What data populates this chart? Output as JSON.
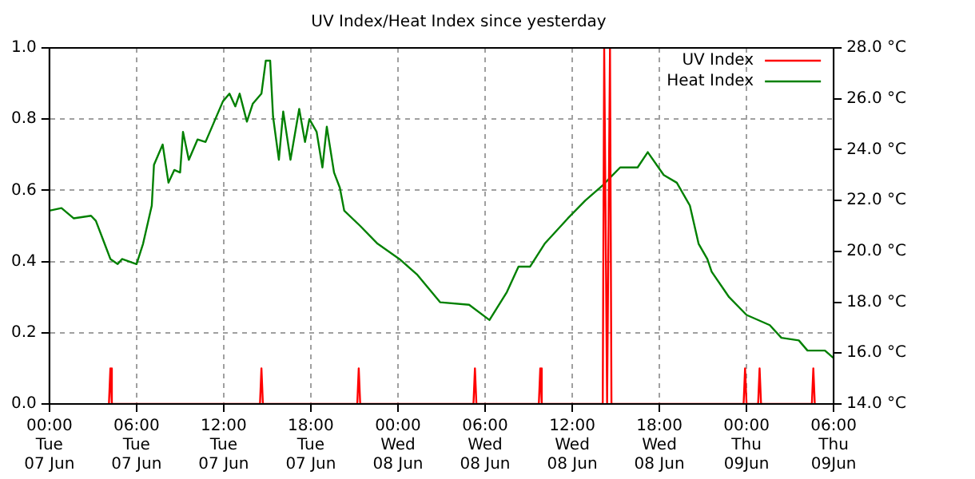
{
  "chart_data": {
    "type": "line",
    "title": "UV Index/Heat Index since yesterday",
    "xlim": [
      "--06-07T00:00",
      "--06-09T06:00"
    ],
    "xticks": [
      {
        "value": "--06-07T00:00",
        "label": "00:00\nTue\n07 Jun"
      },
      {
        "value": "--06-07T06:00",
        "label": "06:00\nTue\n07 Jun"
      },
      {
        "value": "--06-07T12:00",
        "label": "12:00\nTue\n07 Jun"
      },
      {
        "value": "--06-07T18:00",
        "label": "18:00\nTue\n07 Jun"
      },
      {
        "value": "--06-08T00:00",
        "label": "00:00\nWed\n08 Jun"
      },
      {
        "value": "--06-08T06:00",
        "label": "06:00\nWed\n08 Jun"
      },
      {
        "value": "--06-08T12:00",
        "label": "12:00\nWed\n08 Jun"
      },
      {
        "value": "--06-08T18:00",
        "label": "18:00\nWed\n08 Jun"
      },
      {
        "value": "--06-09T00:00",
        "label": "00:00\nThu\n09Jun"
      },
      {
        "value": "--06-09T06:00",
        "label": "06:00\nThu\n09Jun"
      }
    ],
    "ylim": [
      0,
      1
    ],
    "yticks": [
      {
        "value": 0,
        "label": "0.0"
      },
      {
        "value": 0.2,
        "label": "0.2"
      },
      {
        "value": 0.4,
        "label": "0.4"
      },
      {
        "value": 0.6,
        "label": "0.6"
      },
      {
        "value": 0.8,
        "label": "0.8"
      },
      {
        "value": 1,
        "label": "1.0"
      }
    ],
    "y2lim": [
      14,
      28
    ],
    "y2ticks": [
      {
        "value": 14,
        "label": "14.0 °C"
      },
      {
        "value": 16,
        "label": "16.0 °C"
      },
      {
        "value": 18,
        "label": "18.0 °C"
      },
      {
        "value": 20,
        "label": "20.0 °C"
      },
      {
        "value": 22,
        "label": "22.0 °C"
      },
      {
        "value": 24,
        "label": "24.0 °C"
      },
      {
        "value": 26,
        "label": "26.0 °C"
      },
      {
        "value": 28,
        "label": "28.0 °C"
      }
    ],
    "grid": true,
    "legend": "top right",
    "marker": "none",
    "line_style": "solid",
    "series": [
      {
        "name": "UV Index",
        "color": "#ff0000",
        "x": [
          "--06-07T04:06",
          "--06-07T04:12",
          "--06-07T04:18",
          "--06-07T14:30",
          "--06-07T14:36",
          "--06-07T14:42",
          "--06-07T21:12",
          "--06-07T21:18",
          "--06-07T21:24",
          "--06-08T05:12",
          "--06-08T05:18",
          "--06-08T05:24",
          "--06-08T09:42",
          "--06-08T09:48",
          "--06-08T09:54",
          "--06-08T14:06",
          "--06-08T14:12",
          "--06-08T14:24",
          "--06-08T14:36",
          "--06-08T14:42",
          "--06-08T23:48",
          "--06-08T23:54",
          "--06-09T00:00",
          "--06-09T00:48",
          "--06-09T00:54",
          "--06-09T01:00",
          "--06-09T04:30",
          "--06-09T04:36",
          "--06-09T04:42"
        ],
        "values": [
          0,
          0.1,
          0,
          0,
          0.1,
          0,
          0,
          0.1,
          0,
          0,
          0.1,
          0,
          0,
          0.1,
          0,
          0,
          1,
          0,
          1,
          0,
          0,
          0.1,
          0,
          0,
          0.1,
          0,
          0,
          0.1,
          0
        ]
      },
      {
        "name": "Heat Index",
        "color": "#008000",
        "axis": "y2",
        "x": [
          "--06-07T00:00",
          "--06-07T00:50",
          "--06-07T01:40",
          "--06-07T02:52",
          "--06-07T03:12",
          "--06-07T03:48",
          "--06-07T04:12",
          "--06-07T04:42",
          "--06-07T05:00",
          "--06-07T06:00",
          "--06-07T06:27",
          "--06-07T07:03",
          "--06-07T07:12",
          "--06-07T07:48",
          "--06-07T08:12",
          "--06-07T08:36",
          "--06-07T09:00",
          "--06-07T09:12",
          "--06-07T09:36",
          "--06-07T10:12",
          "--06-07T10:45",
          "--06-07T11:21",
          "--06-07T11:57",
          "--06-07T12:24",
          "--06-07T12:48",
          "--06-07T13:06",
          "--06-07T13:36",
          "--06-07T14:00",
          "--06-07T14:36",
          "--06-07T14:54",
          "--06-07T15:12",
          "--06-07T15:24",
          "--06-07T15:48",
          "--06-07T16:06",
          "--06-07T16:36",
          "--06-07T17:12",
          "--06-07T17:36",
          "--06-07T17:54",
          "--06-07T18:24",
          "--06-07T18:48",
          "--06-07T19:06",
          "--06-07T19:36",
          "--06-07T20:00",
          "--06-07T20:18",
          "--06-07T21:24",
          "--06-07T22:36",
          "--06-08T00:06",
          "--06-08T01:18",
          "--06-08T02:54",
          "--06-08T04:54",
          "--06-08T06:18",
          "--06-08T07:30",
          "--06-08T08:18",
          "--06-08T09:06",
          "--06-08T10:06",
          "--06-08T11:42",
          "--06-08T12:54",
          "--06-08T14:06",
          "--06-08T15:18",
          "--06-08T16:30",
          "--06-08T17:12",
          "--06-08T18:18",
          "--06-08T19:12",
          "--06-08T20:06",
          "--06-08T20:42",
          "--06-08T21:18",
          "--06-08T21:36",
          "--06-08T22:48",
          "--06-09T00:00",
          "--06-09T01:36",
          "--06-09T02:24",
          "--06-09T03:36",
          "--06-09T04:12",
          "--06-09T05:24",
          "--06-09T06:00"
        ],
        "values": [
          21.6,
          21.7,
          21.3,
          21.4,
          21.2,
          20.3,
          19.7,
          19.5,
          19.7,
          19.5,
          20.3,
          21.8,
          23.4,
          24.2,
          22.7,
          23.2,
          23.1,
          24.7,
          23.6,
          24.4,
          24.3,
          25.1,
          25.9,
          26.2,
          25.7,
          26.2,
          25.1,
          25.8,
          26.2,
          27.5,
          27.5,
          25.3,
          23.6,
          25.5,
          23.6,
          25.6,
          24.3,
          25.2,
          24.7,
          23.3,
          24.9,
          23.1,
          22.5,
          21.6,
          21.0,
          20.3,
          19.7,
          19.1,
          18.0,
          17.9,
          17.3,
          18.4,
          19.4,
          19.4,
          20.3,
          21.3,
          22.0,
          22.6,
          23.3,
          23.3,
          23.9,
          23.0,
          22.7,
          21.8,
          20.3,
          19.7,
          19.2,
          18.2,
          17.5,
          17.1,
          16.6,
          16.5,
          16.1,
          16.1,
          15.8
        ]
      }
    ]
  }
}
